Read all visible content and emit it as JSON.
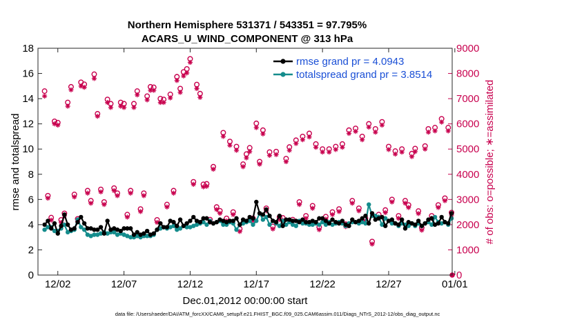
{
  "chart_data": {
    "type": "line",
    "title": "Northern Hemisphere 531371 / 543351 = 97.795%",
    "subtitle": "ACARS_U_WIND_COMPONENT @ 313 hPa",
    "xlabel": "Dec.01,2012 00:00:00 start",
    "ylabel": "rmse and totalspread",
    "y2label": "# of obs: o=possible; ∗=assimilated",
    "xlim": [
      0.5,
      31.8
    ],
    "ylim": [
      0,
      18
    ],
    "y2lim": [
      0,
      9000
    ],
    "x_ticks": [
      2,
      7,
      12,
      17,
      22,
      27,
      32
    ],
    "x_tick_labels": [
      "12/02",
      "12/07",
      "12/12",
      "12/17",
      "12/22",
      "12/27",
      "01/01"
    ],
    "y_ticks": [
      0,
      2,
      4,
      6,
      8,
      10,
      12,
      14,
      16,
      18
    ],
    "y2_ticks": [
      0,
      1000,
      2000,
      3000,
      4000,
      5000,
      6000,
      7000,
      8000,
      9000
    ],
    "legend_position": "top-right",
    "footer": "data file: /Users/raeder/DAI/ATM_forcXX/CAM6_setup/f.e21.FHIST_BGC.f09_025.CAM6assim.011/Diags_NTrS_2012-12/obs_diag_output.nc",
    "series": [
      {
        "name": "rmse grand pr = 4.0943",
        "color": "#000000",
        "axis": "left",
        "x": [
          1.0,
          1.25,
          1.5,
          1.75,
          2.0,
          2.25,
          2.5,
          2.75,
          3.0,
          3.25,
          3.5,
          3.75,
          4.0,
          4.25,
          4.5,
          4.75,
          5.0,
          5.25,
          5.5,
          5.75,
          6.0,
          6.25,
          6.5,
          6.75,
          7.0,
          7.25,
          7.5,
          7.75,
          8.0,
          8.25,
          8.5,
          8.75,
          9.0,
          9.25,
          9.5,
          9.75,
          10.0,
          10.25,
          10.5,
          10.75,
          11.0,
          11.25,
          11.5,
          11.75,
          12.0,
          12.25,
          12.5,
          12.75,
          13.0,
          13.25,
          13.5,
          13.75,
          14.0,
          14.25,
          14.5,
          14.75,
          15.0,
          15.25,
          15.5,
          15.75,
          16.0,
          16.25,
          16.5,
          16.75,
          17.0,
          17.25,
          17.5,
          17.75,
          18.0,
          18.25,
          18.5,
          18.75,
          19.0,
          19.25,
          19.5,
          19.75,
          20.0,
          20.25,
          20.5,
          20.75,
          21.0,
          21.25,
          21.5,
          21.75,
          22.0,
          22.25,
          22.5,
          22.75,
          23.0,
          23.25,
          23.5,
          23.75,
          24.0,
          24.25,
          24.5,
          24.75,
          25.0,
          25.25,
          25.5,
          25.75,
          26.0,
          26.25,
          26.5,
          26.75,
          27.0,
          27.25,
          27.5,
          27.75,
          28.0,
          28.25,
          28.5,
          28.75,
          29.0,
          29.25,
          29.5,
          29.75,
          30.0,
          30.25,
          30.5,
          30.75,
          31.0,
          31.25,
          31.5,
          31.75
        ],
        "values": [
          4.0,
          4.3,
          3.7,
          4.1,
          3.3,
          3.9,
          4.8,
          4.0,
          3.6,
          3.7,
          4.2,
          4.6,
          4.1,
          3.7,
          3.7,
          3.6,
          3.6,
          3.8,
          3.3,
          4.3,
          3.6,
          3.7,
          3.6,
          3.5,
          3.7,
          3.7,
          3.7,
          3.2,
          3.4,
          3.2,
          3.3,
          3.5,
          3.2,
          3.3,
          3.6,
          4.1,
          3.8,
          3.8,
          4.3,
          4.2,
          3.9,
          4.4,
          3.9,
          4.1,
          4.3,
          4.6,
          4.3,
          4.2,
          4.5,
          4.5,
          4.2,
          4.1,
          4.2,
          4.4,
          4.3,
          4.2,
          4.3,
          4.3,
          4.5,
          4.0,
          4.4,
          4.3,
          4.6,
          4.5,
          5.8,
          4.9,
          4.8,
          5.2,
          4.7,
          4.3,
          4.2,
          4.7,
          3.9,
          4.4,
          4.4,
          4.3,
          4.3,
          4.2,
          4.4,
          4.2,
          4.2,
          4.3,
          4.2,
          4.5,
          4.5,
          4.3,
          4.1,
          4.4,
          4.2,
          4.1,
          4.3,
          4.0,
          3.9,
          4.4,
          4.2,
          4.3,
          4.5,
          4.7,
          4.1,
          4.9,
          4.4,
          4.5,
          4.6,
          3.9,
          4.3,
          4.4,
          4.1,
          4.0,
          4.4,
          3.7,
          4.2,
          4.1,
          4.0,
          4.3,
          3.9,
          4.1,
          4.4,
          4.5,
          4.0,
          4.1,
          4.6,
          4.2,
          4.1,
          4.9
        ]
      },
      {
        "name": "totalspread grand pr = 3.8514",
        "color": "#148c8c",
        "axis": "left",
        "x": [
          1.0,
          1.25,
          1.5,
          1.75,
          2.0,
          2.25,
          2.5,
          2.75,
          3.0,
          3.25,
          3.5,
          3.75,
          4.0,
          4.25,
          4.5,
          4.75,
          5.0,
          5.25,
          5.5,
          5.75,
          6.0,
          6.25,
          6.5,
          6.75,
          7.0,
          7.25,
          7.5,
          7.75,
          8.0,
          8.25,
          8.5,
          8.75,
          9.0,
          9.25,
          9.5,
          9.75,
          10.0,
          10.25,
          10.5,
          10.75,
          11.0,
          11.25,
          11.5,
          11.75,
          12.0,
          12.25,
          12.5,
          12.75,
          13.0,
          13.25,
          13.5,
          13.75,
          14.0,
          14.25,
          14.5,
          14.75,
          15.0,
          15.25,
          15.5,
          15.75,
          16.0,
          16.25,
          16.5,
          16.75,
          17.0,
          17.25,
          17.5,
          17.75,
          18.0,
          18.25,
          18.5,
          18.75,
          19.0,
          19.25,
          19.5,
          19.75,
          20.0,
          20.25,
          20.5,
          20.75,
          21.0,
          21.25,
          21.5,
          21.75,
          22.0,
          22.25,
          22.5,
          22.75,
          23.0,
          23.25,
          23.5,
          23.75,
          24.0,
          24.25,
          24.5,
          24.75,
          25.0,
          25.25,
          25.5,
          25.75,
          26.0,
          26.25,
          26.5,
          26.75,
          27.0,
          27.25,
          27.5,
          27.75,
          28.0,
          28.25,
          28.5,
          28.75,
          29.0,
          29.25,
          29.5,
          29.75,
          30.0,
          30.25,
          30.5,
          30.75,
          31.0,
          31.25,
          31.5,
          31.75
        ],
        "values": [
          3.6,
          3.8,
          3.8,
          3.5,
          3.5,
          3.7,
          4.0,
          3.4,
          3.5,
          3.6,
          4.4,
          3.8,
          3.6,
          3.2,
          3.1,
          3.2,
          3.2,
          3.3,
          3.4,
          3.3,
          3.4,
          3.4,
          3.2,
          3.3,
          3.2,
          3.1,
          3.0,
          3.0,
          3.1,
          3.0,
          3.1,
          3.1,
          3.1,
          3.2,
          3.6,
          3.7,
          3.8,
          3.7,
          3.8,
          3.9,
          3.6,
          3.7,
          3.9,
          3.8,
          3.8,
          3.9,
          4.0,
          4.1,
          4.2,
          4.0,
          4.3,
          4.1,
          4.2,
          4.3,
          4.0,
          4.0,
          4.2,
          4.1,
          3.6,
          4.0,
          4.1,
          4.2,
          4.3,
          4.0,
          4.3,
          4.9,
          4.4,
          4.6,
          4.0,
          4.3,
          4.1,
          3.9,
          4.3,
          4.0,
          4.2,
          4.0,
          3.9,
          4.3,
          4.1,
          4.1,
          4.0,
          4.0,
          4.1,
          4.0,
          4.2,
          4.0,
          4.2,
          4.0,
          4.1,
          4.2,
          4.1,
          3.9,
          4.1,
          4.2,
          4.2,
          4.1,
          4.2,
          4.1,
          5.6,
          4.7,
          4.7,
          4.6,
          4.0,
          4.5,
          4.3,
          4.1,
          4.1,
          3.9,
          4.1,
          4.0,
          3.9,
          4.1,
          3.9,
          4.1,
          3.9,
          4.1,
          4.2,
          4.0,
          4.6,
          4.2,
          4.1,
          4.2,
          4.0,
          4.5
        ]
      }
    ],
    "obs_possible": {
      "axis": "right",
      "marker": "circle",
      "color": "#c8004e",
      "x": [
        1.0,
        1.25,
        1.5,
        1.75,
        2.0,
        2.25,
        2.5,
        2.75,
        3.0,
        3.25,
        3.5,
        3.75,
        4.0,
        4.25,
        4.5,
        4.75,
        5.0,
        5.25,
        5.5,
        5.75,
        6.0,
        6.25,
        6.5,
        6.75,
        7.0,
        7.25,
        7.5,
        7.75,
        8.0,
        8.25,
        8.5,
        8.75,
        9.0,
        9.25,
        9.5,
        9.75,
        10.0,
        10.25,
        10.5,
        10.75,
        11.0,
        11.25,
        11.5,
        11.75,
        12.0,
        12.25,
        12.5,
        12.75,
        13.0,
        13.25,
        13.5,
        13.75,
        14.0,
        14.25,
        14.5,
        14.75,
        15.0,
        15.25,
        15.5,
        15.75,
        16.0,
        16.25,
        16.5,
        16.75,
        17.0,
        17.25,
        17.5,
        17.75,
        18.0,
        18.25,
        18.5,
        18.75,
        19.0,
        19.25,
        19.5,
        19.75,
        20.0,
        20.25,
        20.5,
        20.75,
        21.0,
        21.25,
        21.5,
        21.75,
        22.0,
        22.25,
        22.5,
        22.75,
        23.0,
        23.25,
        23.5,
        23.75,
        24.0,
        24.25,
        24.5,
        24.75,
        25.0,
        25.25,
        25.5,
        25.75,
        26.0,
        26.25,
        26.5,
        26.75,
        27.0,
        27.25,
        27.5,
        27.75,
        28.0,
        28.25,
        28.5,
        28.75,
        29.0,
        29.25,
        29.5,
        29.75,
        30.0,
        30.25,
        30.5,
        30.75,
        31.0,
        31.25,
        31.5,
        31.75
      ],
      "values": [
        7300,
        3150,
        2280,
        6100,
        6050,
        2190,
        2450,
        6850,
        7470,
        3200,
        2230,
        7650,
        7570,
        3350,
        2950,
        7970,
        6400,
        3400,
        2900,
        6970,
        6800,
        3450,
        3250,
        6850,
        6800,
        2400,
        3350,
        6800,
        7300,
        2620,
        3250,
        7100,
        7470,
        7450,
        2190,
        7000,
        6970,
        2800,
        7170,
        3350,
        7870,
        7400,
        8060,
        8180,
        8580,
        3700,
        7560,
        7200,
        3600,
        3620,
        2200,
        4300,
        2700,
        2550,
        5650,
        2250,
        5300,
        2500,
        5100,
        1830,
        4400,
        4800,
        5050,
        2250,
        6020,
        4500,
        5750,
        2650,
        4880,
        1930,
        4900,
        2300,
        2270,
        4620,
        5080,
        2200,
        5350,
        2900,
        5500,
        2350,
        5620,
        2750,
        5200,
        1900,
        5000,
        2320,
        5000,
        2500,
        5100,
        2620,
        5200,
        2020,
        5750,
        2950,
        5820,
        2650,
        5500,
        2250,
        6000,
        1330,
        5800,
        2400,
        6080,
        2580,
        5100,
        3000,
        4920,
        2350,
        5000,
        2950,
        2780,
        4820,
        5020,
        2540,
        1880,
        5120,
        5800,
        2350,
        5850,
        2780,
        6200,
        3050,
        5850,
        2480
      ]
    },
    "obs_assimilated": {
      "axis": "right",
      "marker": "asterisk",
      "color": "#c8004e",
      "x": [
        1.0,
        1.25,
        1.5,
        1.75,
        2.0,
        2.25,
        2.5,
        2.75,
        3.0,
        3.25,
        3.5,
        3.75,
        4.0,
        4.25,
        4.5,
        4.75,
        5.0,
        5.25,
        5.5,
        5.75,
        6.0,
        6.25,
        6.5,
        6.75,
        7.0,
        7.25,
        7.5,
        7.75,
        8.0,
        8.25,
        8.5,
        8.75,
        9.0,
        9.25,
        9.5,
        9.75,
        10.0,
        10.25,
        10.5,
        10.75,
        11.0,
        11.25,
        11.5,
        11.75,
        12.0,
        12.25,
        12.5,
        12.75,
        13.0,
        13.25,
        13.5,
        13.75,
        14.0,
        14.25,
        14.5,
        14.75,
        15.0,
        15.25,
        15.5,
        15.75,
        16.0,
        16.25,
        16.5,
        16.75,
        17.0,
        17.25,
        17.5,
        17.75,
        18.0,
        18.25,
        18.5,
        18.75,
        19.0,
        19.25,
        19.5,
        19.75,
        20.0,
        20.25,
        20.5,
        20.75,
        21.0,
        21.25,
        21.5,
        21.75,
        22.0,
        22.25,
        22.5,
        22.75,
        23.0,
        23.25,
        23.5,
        23.75,
        24.0,
        24.25,
        24.5,
        24.75,
        25.0,
        25.25,
        25.5,
        25.75,
        26.0,
        26.25,
        26.5,
        26.75,
        27.0,
        27.25,
        27.5,
        27.75,
        28.0,
        28.25,
        28.5,
        28.75,
        29.0,
        29.25,
        29.5,
        29.75,
        30.0,
        30.25,
        30.5,
        30.75,
        31.0,
        31.25,
        31.5,
        31.75
      ],
      "values": [
        7100,
        3050,
        2180,
        6000,
        5950,
        2090,
        2350,
        6700,
        7350,
        3100,
        2130,
        7500,
        7450,
        3250,
        2850,
        7800,
        6300,
        3300,
        2800,
        6850,
        6650,
        3350,
        3150,
        6700,
        6650,
        2300,
        3250,
        6650,
        7150,
        2520,
        3150,
        6950,
        7330,
        7330,
        2090,
        6850,
        6850,
        2700,
        7030,
        3250,
        7720,
        7250,
        7900,
        8020,
        8440,
        3600,
        7400,
        7050,
        3500,
        3520,
        2100,
        4200,
        2600,
        2450,
        5500,
        2150,
        5150,
        2400,
        4950,
        1730,
        4300,
        4650,
        4900,
        2150,
        5850,
        4400,
        5600,
        2550,
        4750,
        1830,
        4780,
        2200,
        2170,
        4500,
        4950,
        2100,
        5220,
        2800,
        5370,
        2250,
        5480,
        2650,
        5070,
        1800,
        4880,
        2220,
        4880,
        2400,
        4980,
        2520,
        5070,
        1920,
        5620,
        2850,
        5700,
        2550,
        5370,
        2150,
        5870,
        1230,
        5670,
        2300,
        5950,
        2480,
        4980,
        2900,
        4800,
        2250,
        4880,
        2850,
        2680,
        4700,
        4900,
        2440,
        1780,
        5000,
        5670,
        2250,
        5720,
        2680,
        6070,
        2950,
        5720,
        2380
      ]
    }
  }
}
